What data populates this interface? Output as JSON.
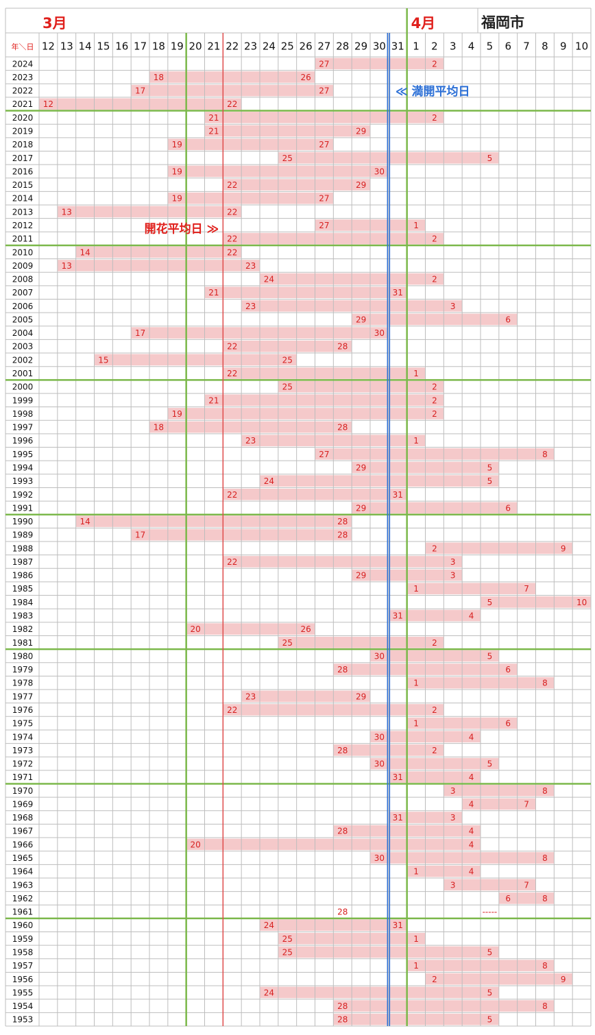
{
  "header": {
    "march": "3月",
    "april": "4月",
    "city": "福岡市",
    "corner": "年＼日",
    "days": [
      12,
      13,
      14,
      15,
      16,
      17,
      18,
      19,
      20,
      21,
      22,
      23,
      24,
      25,
      26,
      27,
      28,
      29,
      30,
      31,
      1,
      2,
      3,
      4,
      5,
      6,
      7,
      8,
      9,
      10
    ]
  },
  "annotations": {
    "bloom_avg": "開花平均日 ≫",
    "full_avg": "≪ 満開平均日"
  },
  "rows": [
    {
      "year": "2024",
      "bloom": 27,
      "full": 2
    },
    {
      "year": "2023",
      "bloom": 18,
      "full": 26
    },
    {
      "year": "2022",
      "bloom": 17,
      "full": 27
    },
    {
      "year": "2021",
      "bloom": 12,
      "full": 22
    },
    {
      "year": "2020",
      "bloom": 21,
      "full": 2
    },
    {
      "year": "2019",
      "bloom": 21,
      "full": 29
    },
    {
      "year": "2018",
      "bloom": 19,
      "full": 27
    },
    {
      "year": "2017",
      "bloom": 25,
      "full": 5
    },
    {
      "year": "2016",
      "bloom": 19,
      "full": 30
    },
    {
      "year": "2015",
      "bloom": 22,
      "full": 29
    },
    {
      "year": "2014",
      "bloom": 19,
      "full": 27
    },
    {
      "year": "2013",
      "bloom": 13,
      "full": 22
    },
    {
      "year": "2012",
      "bloom": 27,
      "full": 1
    },
    {
      "year": "2011",
      "bloom": 22,
      "full": 2
    },
    {
      "year": "2010",
      "bloom": 14,
      "full": 22
    },
    {
      "year": "2009",
      "bloom": 13,
      "full": 23
    },
    {
      "year": "2008",
      "bloom": 24,
      "full": 2
    },
    {
      "year": "2007",
      "bloom": 21,
      "full": 31
    },
    {
      "year": "2006",
      "bloom": 23,
      "full": 3
    },
    {
      "year": "2005",
      "bloom": 29,
      "full": 6
    },
    {
      "year": "2004",
      "bloom": 17,
      "full": 30
    },
    {
      "year": "2003",
      "bloom": 22,
      "full": 28
    },
    {
      "year": "2002",
      "bloom": 15,
      "full": 25
    },
    {
      "year": "2001",
      "bloom": 22,
      "full": 1
    },
    {
      "year": "2000",
      "bloom": 25,
      "full": 2
    },
    {
      "year": "1999",
      "bloom": 21,
      "full": 2
    },
    {
      "year": "1998",
      "bloom": 19,
      "full": 2
    },
    {
      "year": "1997",
      "bloom": 18,
      "full": 28
    },
    {
      "year": "1996",
      "bloom": 23,
      "full": 1
    },
    {
      "year": "1995",
      "bloom": 27,
      "full": 8
    },
    {
      "year": "1994",
      "bloom": 29,
      "full": 5
    },
    {
      "year": "1993",
      "bloom": 24,
      "full": 5
    },
    {
      "year": "1992",
      "bloom": 22,
      "full": 31
    },
    {
      "year": "1991",
      "bloom": 29,
      "full": 6
    },
    {
      "year": "1990",
      "bloom": 14,
      "full": 28
    },
    {
      "year": "1989",
      "bloom": 17,
      "full": 28
    },
    {
      "year": "1988",
      "bloom": 2,
      "full": 9
    },
    {
      "year": "1987",
      "bloom": 22,
      "full": 3
    },
    {
      "year": "1986",
      "bloom": 29,
      "full": 3
    },
    {
      "year": "1985",
      "bloom": 1,
      "full": 7
    },
    {
      "year": "1984",
      "bloom": 5,
      "full": 10
    },
    {
      "year": "1983",
      "bloom": 31,
      "full": 4
    },
    {
      "year": "1982",
      "bloom": 20,
      "full": 26
    },
    {
      "year": "1981",
      "bloom": 25,
      "full": 2
    },
    {
      "year": "1980",
      "bloom": 30,
      "full": 5
    },
    {
      "year": "1979",
      "bloom": 28,
      "full": 6
    },
    {
      "year": "1978",
      "bloom": 1,
      "full": 8
    },
    {
      "year": "1977",
      "bloom": 23,
      "full": 29
    },
    {
      "year": "1976",
      "bloom": 22,
      "full": 2
    },
    {
      "year": "1975",
      "bloom": 1,
      "full": 6
    },
    {
      "year": "1974",
      "bloom": 30,
      "full": 4
    },
    {
      "year": "1973",
      "bloom": 28,
      "full": 2
    },
    {
      "year": "1972",
      "bloom": 30,
      "full": 5
    },
    {
      "year": "1971",
      "bloom": 31,
      "full": 4
    },
    {
      "year": "1970",
      "bloom": 3,
      "full": 8
    },
    {
      "year": "1969",
      "bloom": 4,
      "full": 7
    },
    {
      "year": "1968",
      "bloom": 31,
      "full": 3
    },
    {
      "year": "1967",
      "bloom": 28,
      "full": 4
    },
    {
      "year": "1966",
      "bloom": 20,
      "full": 4
    },
    {
      "year": "1965",
      "bloom": 30,
      "full": 8
    },
    {
      "year": "1964",
      "bloom": 1,
      "full": 4
    },
    {
      "year": "1963",
      "bloom": 3,
      "full": 7
    },
    {
      "year": "1962",
      "bloom": 6,
      "full": 8
    },
    {
      "year": "1961",
      "bloom": 28,
      "full": "-----"
    },
    {
      "year": "1960",
      "bloom": 24,
      "full": 31
    },
    {
      "year": "1959",
      "bloom": 25,
      "full": 1
    },
    {
      "year": "1958",
      "bloom": 25,
      "full": 5
    },
    {
      "year": "1957",
      "bloom": 1,
      "full": 8
    },
    {
      "year": "1956",
      "bloom": 2,
      "full": 9
    },
    {
      "year": "1955",
      "bloom": 24,
      "full": 5
    },
    {
      "year": "1954",
      "bloom": 28,
      "full": 8
    },
    {
      "year": "1953",
      "bloom": 28,
      "full": 5
    }
  ]
}
